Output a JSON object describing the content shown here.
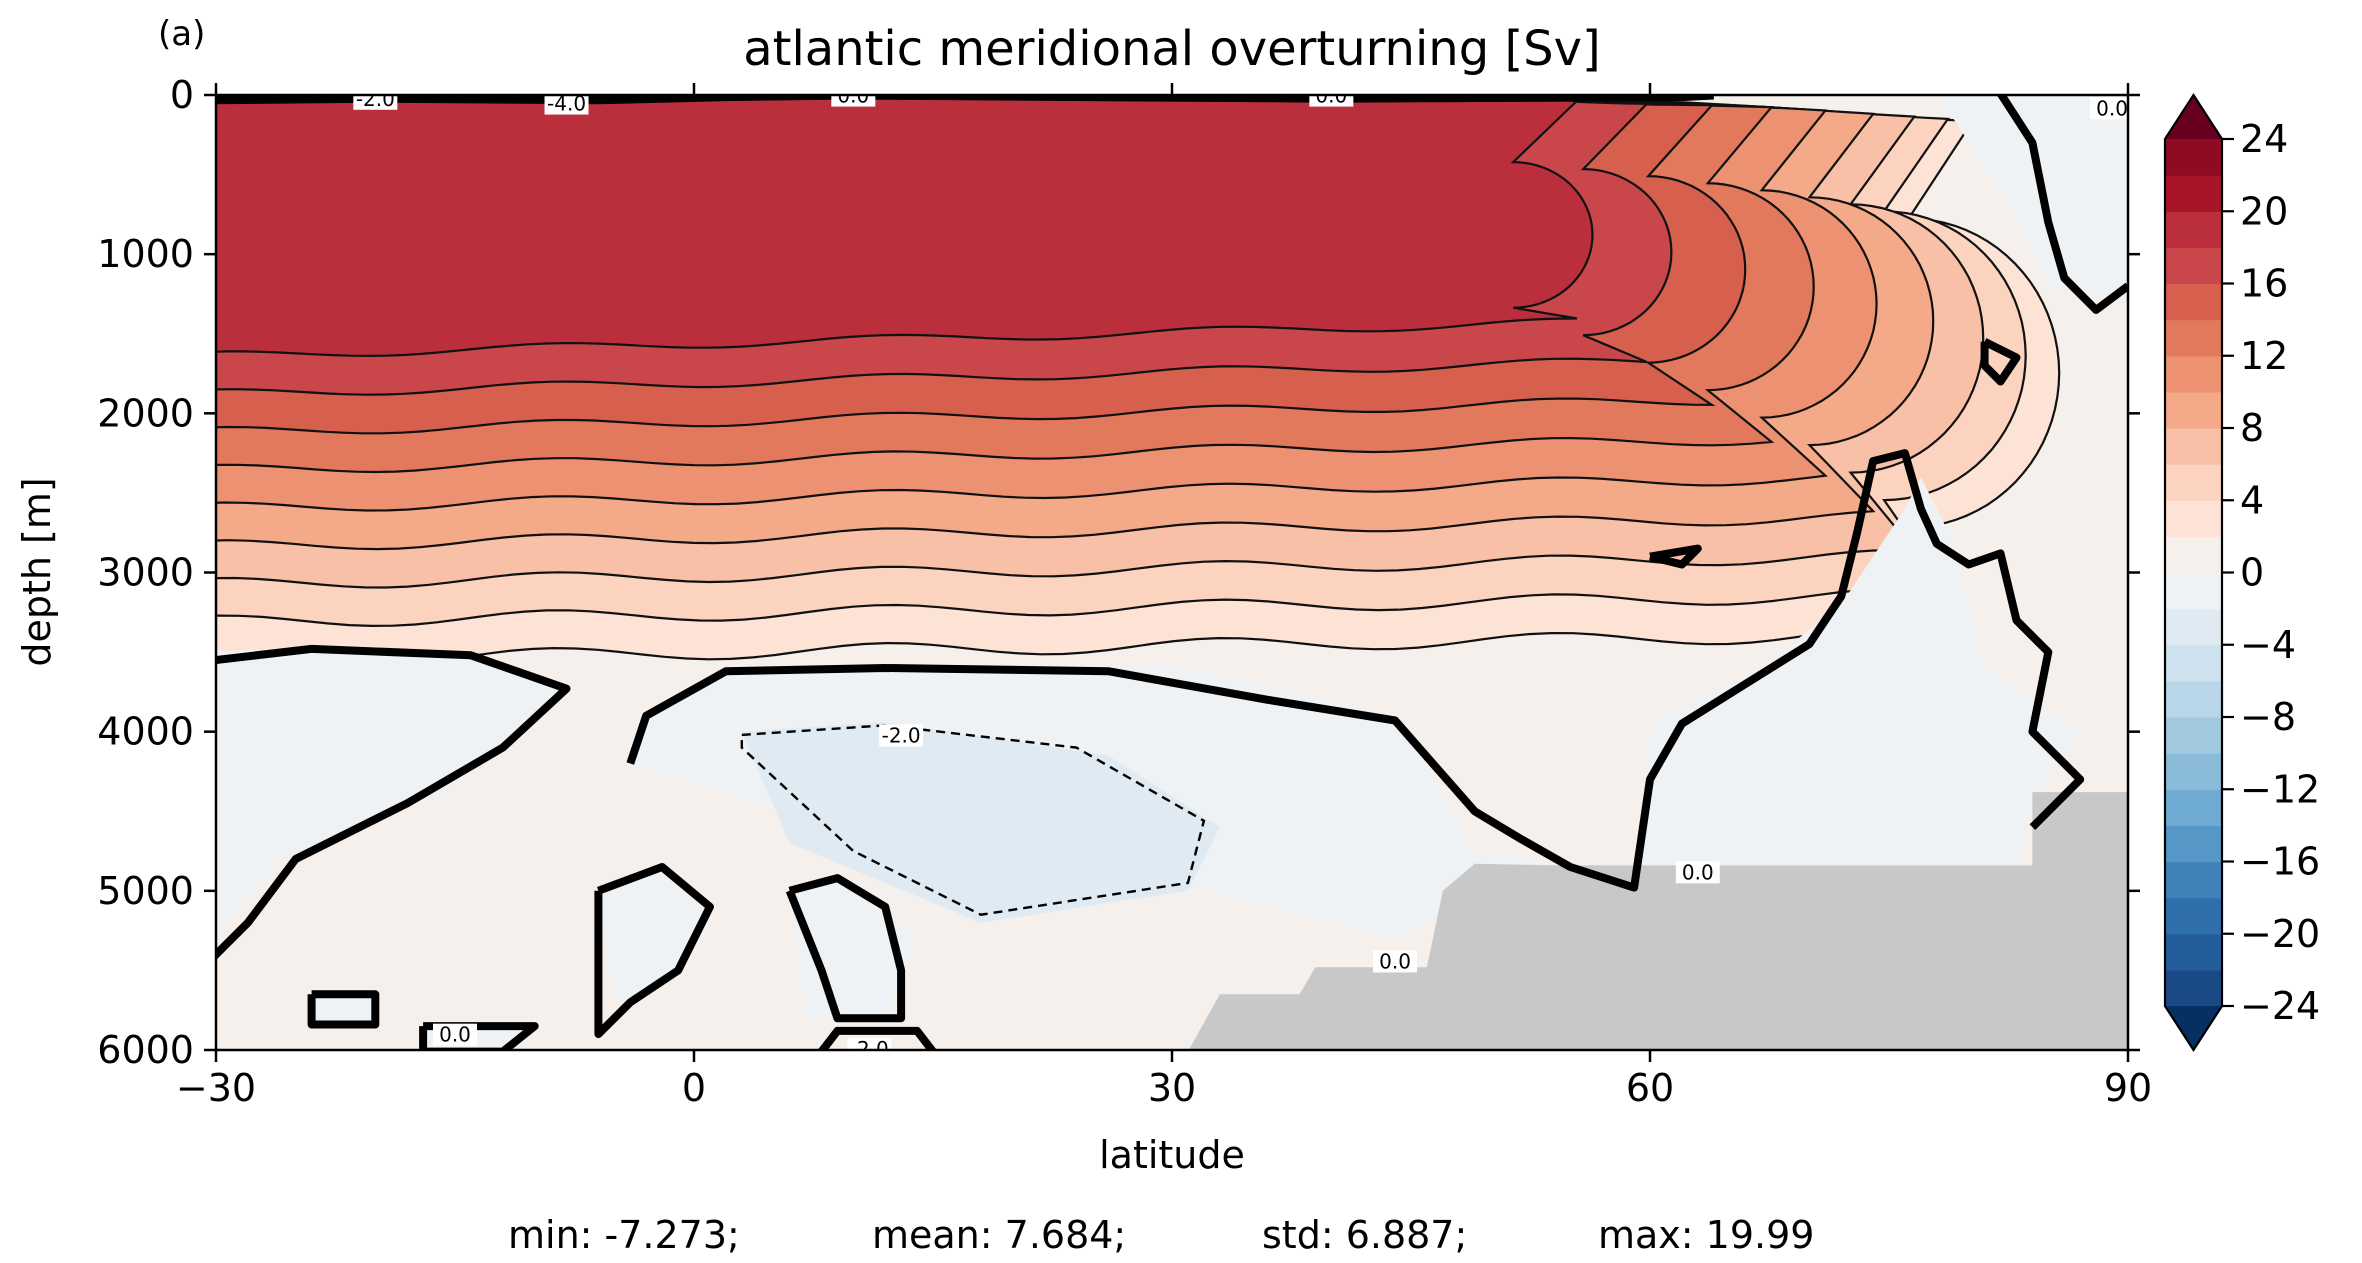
{
  "panel_label": "(a)",
  "chart_data": {
    "type": "heatmap",
    "subtype": "filled-contour",
    "title": "atlantic meridional overturning [Sv]",
    "xlabel": "latitude",
    "ylabel": "depth [m]",
    "xlim": [
      -30,
      90
    ],
    "ylim": [
      6000,
      0
    ],
    "x_ticks": [
      -30,
      0,
      30,
      60,
      90
    ],
    "x_tick_labels": [
      "−30",
      "0",
      "30",
      "60",
      "90"
    ],
    "y_ticks": [
      0,
      1000,
      2000,
      3000,
      4000,
      5000,
      6000
    ],
    "y_tick_labels": [
      "0",
      "1000",
      "2000",
      "3000",
      "4000",
      "5000",
      "6000"
    ],
    "colorbar": {
      "min": -24,
      "max": 24,
      "step": 2,
      "extend": "both",
      "tick_values": [
        24,
        20,
        16,
        12,
        8,
        4,
        0,
        -4,
        -8,
        -12,
        -16,
        -20,
        -24
      ],
      "tick_labels": [
        "24",
        "20",
        "16",
        "12",
        "8",
        "4",
        "0",
        "−4",
        "−8",
        "−12",
        "−16",
        "−20",
        "−24"
      ],
      "colormap": "RdBu_r"
    },
    "contour_interval": 2,
    "zero_contour": "thick black",
    "negative_contours": "dashed",
    "inline_labels": [
      "-2.0",
      "-4.0",
      "0.0",
      "0.0",
      "0.0",
      "-2.0",
      "0.0",
      "-2.0",
      "0.0",
      "0.0"
    ],
    "cell": {
      "center_lat": 15,
      "center_depth": 1100,
      "peak_value": 19.99
    },
    "bottom_water_cell": {
      "center_lat": 18,
      "center_depth": 4600,
      "min_value": -7.273
    },
    "land_mask_color": "#c8c8c8",
    "stats": {
      "min": "min: -7.273;",
      "mean": "mean: 7.684;",
      "std": "std: 6.887;",
      "max": "max: 19.99"
    }
  }
}
